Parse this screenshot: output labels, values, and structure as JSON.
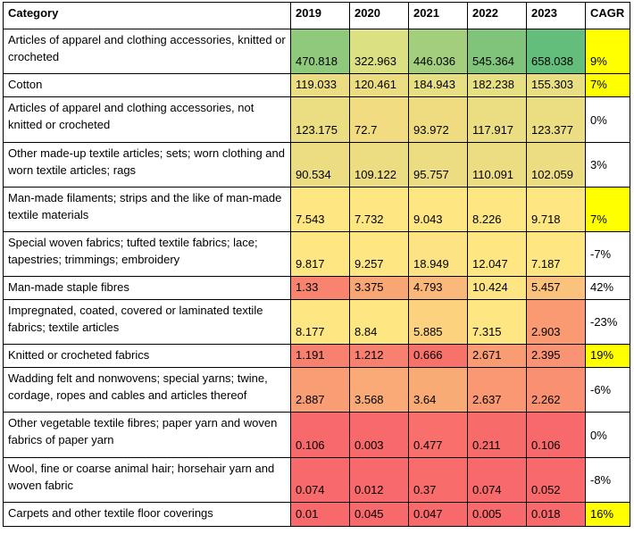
{
  "chart_data": {
    "type": "table",
    "columns": [
      "Category",
      "2019",
      "2020",
      "2021",
      "2022",
      "2023",
      "CAGR"
    ],
    "rows": [
      {
        "category": "Articles of apparel and clothing accessories, knitted or crocheted",
        "values": [
          "470.818",
          "322.963",
          "446.036",
          "545.364",
          "658.038"
        ],
        "cagr": "9%",
        "colors": [
          "#8fc97c",
          "#dbe183",
          "#a3ce7e",
          "#80c47b",
          "#63be7b"
        ],
        "cagr_highlight": true
      },
      {
        "category": "Cotton",
        "values": [
          "119.033",
          "120.461",
          "184.943",
          "182.238",
          "155.303"
        ],
        "cagr": "7%",
        "colors": [
          "#ecdd82",
          "#ecdd82",
          "#e6e083",
          "#e6e083",
          "#e9de82"
        ],
        "cagr_highlight": true
      },
      {
        "category": "Articles of apparel and clothing accessories, not knitted or crocheted",
        "values": [
          "123.175",
          "72.7",
          "93.972",
          "117.917",
          "123.377"
        ],
        "cagr": "0%",
        "colors": [
          "#eadd82",
          "#f1dc81",
          "#efdc81",
          "#eadd82",
          "#eadd82"
        ],
        "cagr_highlight": false
      },
      {
        "category": "Other made-up textile articles; sets; worn clothing and worn textile articles; rags",
        "values": [
          "90.534",
          "109.122",
          "95.757",
          "110.091",
          "102.059"
        ],
        "cagr": "3%",
        "colors": [
          "#eddd82",
          "#ecdd82",
          "#eddd82",
          "#ecdd82",
          "#ecdd82"
        ],
        "cagr_highlight": false
      },
      {
        "category": "Man-made filaments; strips and the like of man-made textile materials",
        "values": [
          "7.543",
          "7.732",
          "9.043",
          "8.226",
          "9.718"
        ],
        "cagr": "7%",
        "colors": [
          "#fee683",
          "#fee683",
          "#fee683",
          "#fee683",
          "#fee683"
        ],
        "cagr_highlight": true
      },
      {
        "category": "Special woven fabrics; tufted textile fabrics; lace; tapestries; trimmings; embroidery",
        "values": [
          "9.817",
          "9.257",
          "18.949",
          "12.047",
          "7.187"
        ],
        "cagr": "-7%",
        "colors": [
          "#fee683",
          "#fee683",
          "#fde383",
          "#fee683",
          "#fee683"
        ],
        "cagr_highlight": false
      },
      {
        "category": "Man-made staple fibres",
        "values": [
          "1.33",
          "3.375",
          "4.793",
          "10.424",
          "5.457"
        ],
        "cagr": "42%",
        "colors": [
          "#f8846f",
          "#f9a675",
          "#fab97a",
          "#fde583",
          "#fbc27c"
        ],
        "cagr_highlight": false
      },
      {
        "category": "Impregnated, coated, covered or laminated textile fabrics; textile articles",
        "values": [
          "8.177",
          "8.84",
          "5.885",
          "7.315",
          "2.903"
        ],
        "cagr": "-23%",
        "colors": [
          "#fee683",
          "#fee683",
          "#fcd27f",
          "#fee683",
          "#f99a73"
        ],
        "cagr_highlight": false
      },
      {
        "category": "Knitted or crocheted fabrics",
        "values": [
          "1.191",
          "1.212",
          "0.666",
          "2.671",
          "2.395"
        ],
        "cagr": "19%",
        "colors": [
          "#f8806e",
          "#f8806e",
          "#f8726c",
          "#f99b73",
          "#f99373"
        ],
        "cagr_highlight": true
      },
      {
        "category": "Wadding felt and nonwovens; special yarns; twine, cordage, ropes and cables and articles thereof",
        "values": [
          "2.887",
          "3.568",
          "3.64",
          "2.637",
          "2.262"
        ],
        "cagr": "-6%",
        "colors": [
          "#f99d74",
          "#f9aa76",
          "#f9ab76",
          "#f99873",
          "#f99071"
        ],
        "cagr_highlight": false
      },
      {
        "category": "Other vegetable textile fibres; paper yarn and woven fabrics of paper yarn",
        "values": [
          "0.106",
          "0.003",
          "0.477",
          "0.211",
          "0.106"
        ],
        "cagr": "0%",
        "colors": [
          "#f8696b",
          "#f8696b",
          "#f86f6c",
          "#f86b6b",
          "#f8696b"
        ],
        "cagr_highlight": false
      },
      {
        "category": "Wool, fine or coarse animal hair; horsehair yarn and woven fabric",
        "values": [
          "0.074",
          "0.012",
          "0.37",
          "0.074",
          "0.052"
        ],
        "cagr": "-8%",
        "colors": [
          "#f8696b",
          "#f8696b",
          "#f86d6b",
          "#f8696b",
          "#f8696b"
        ],
        "cagr_highlight": false
      },
      {
        "category": "Carpets and other textile floor coverings",
        "values": [
          "0.01",
          "0.045",
          "0.047",
          "0.005",
          "0.018"
        ],
        "cagr": "16%",
        "colors": [
          "#f8696b",
          "#f8696b",
          "#f8696b",
          "#f8696b",
          "#f8696b"
        ],
        "cagr_highlight": true
      }
    ]
  },
  "colors": {
    "cagr_highlight": "#ffff00",
    "white": "#ffffff"
  }
}
